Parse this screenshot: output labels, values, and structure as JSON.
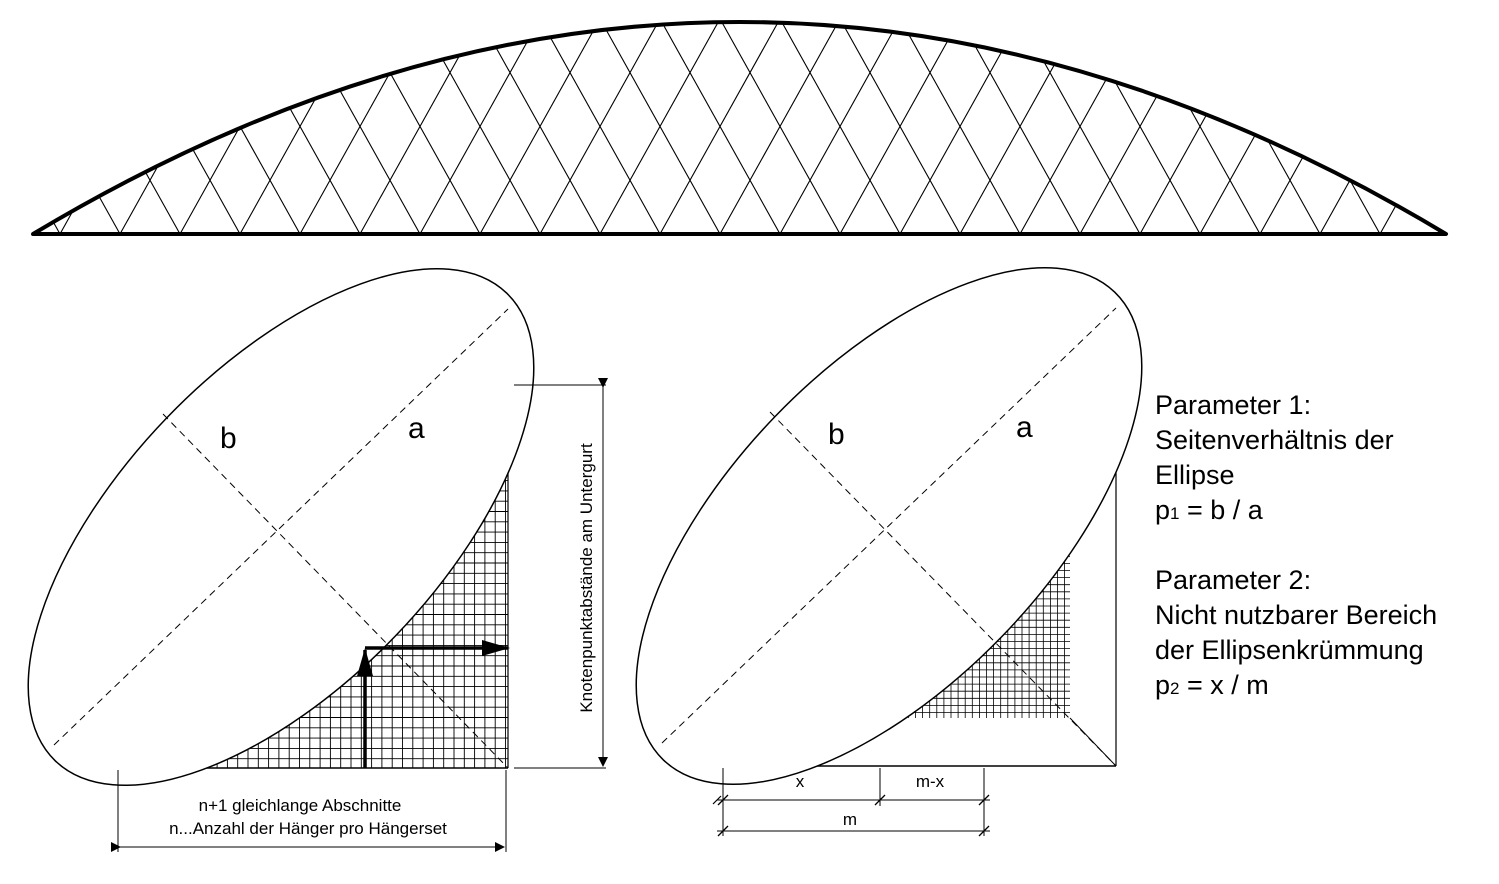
{
  "left_diagram": {
    "label_b": "b",
    "label_a": "a",
    "vertical_dimension_label": "Knotenpunktabstände am Untergurt",
    "horizontal_dimension_line1": "n+1 gleichlange Abschnitte",
    "horizontal_dimension_line2": "n...Anzahl der Hänger pro Hängerset"
  },
  "right_diagram": {
    "label_b": "b",
    "label_a": "a",
    "dim_x": "x",
    "dim_m_minus_x": "m-x",
    "dim_m": "m"
  },
  "parameters": {
    "p1_title": "Parameter 1:",
    "p1_line1": "Seitenverhältnis der",
    "p1_line2": "Ellipse",
    "p1_formula_symbol": "p",
    "p1_formula_sub": "1",
    "p1_formula_rest": " = b / a",
    "p2_title": "Parameter 2:",
    "p2_line1": "Nicht nutzbarer Bereich",
    "p2_line2": "der Ellipsenkrümmung",
    "p2_formula_symbol": "p",
    "p2_formula_sub": "2",
    "p2_formula_rest": " = x / m"
  }
}
